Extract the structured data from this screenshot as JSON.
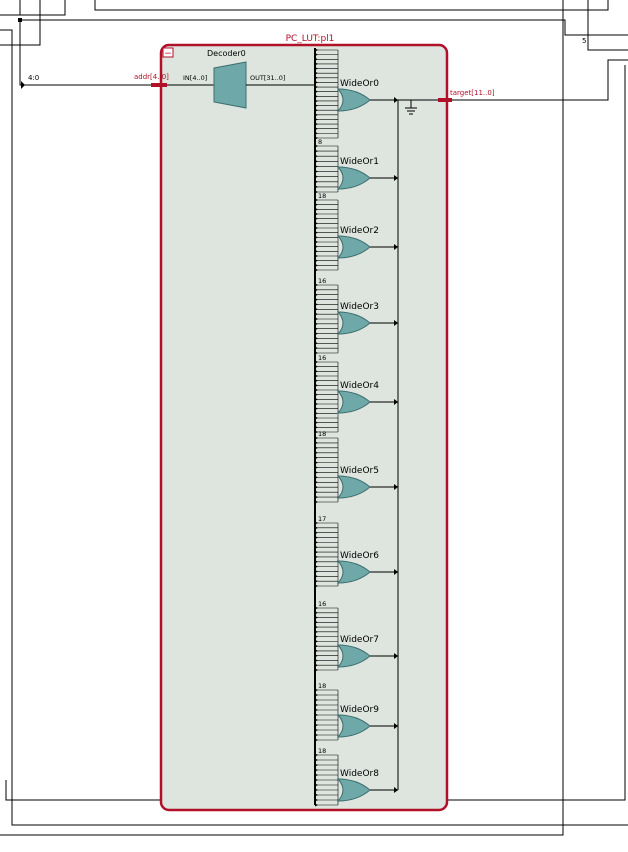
{
  "module": {
    "instance_title": "PC_LUT:pl1",
    "collapse_glyph": "−",
    "border_color": "#b01028",
    "fill_color": "#dde5de"
  },
  "ports": {
    "input_name": "addr[4..0]",
    "output_name": "target[11..0]",
    "input_bus_label": "4:0",
    "top_right_label": "5"
  },
  "decoder": {
    "name": "Decoder0",
    "in_label": "IN[4..0]",
    "out_label": "OUT[31..0]",
    "fill_color": "#6fa8a8"
  },
  "gates": [
    {
      "name": "WideOr0",
      "top_label": ""
    },
    {
      "name": "WideOr1",
      "top_label": "8"
    },
    {
      "name": "WideOr2",
      "top_label": "18"
    },
    {
      "name": "WideOr3",
      "top_label": "16"
    },
    {
      "name": "WideOr4",
      "top_label": "16"
    },
    {
      "name": "WideOr5",
      "top_label": "18"
    },
    {
      "name": "WideOr6",
      "top_label": "17"
    },
    {
      "name": "WideOr7",
      "top_label": "16"
    },
    {
      "name": "WideOr9",
      "top_label": "18"
    },
    {
      "name": "WideOr8",
      "top_label": "18"
    }
  ],
  "colors": {
    "wire": "#000000",
    "bus_red": "#b01028",
    "gate_fill": "#6fa8a8"
  }
}
